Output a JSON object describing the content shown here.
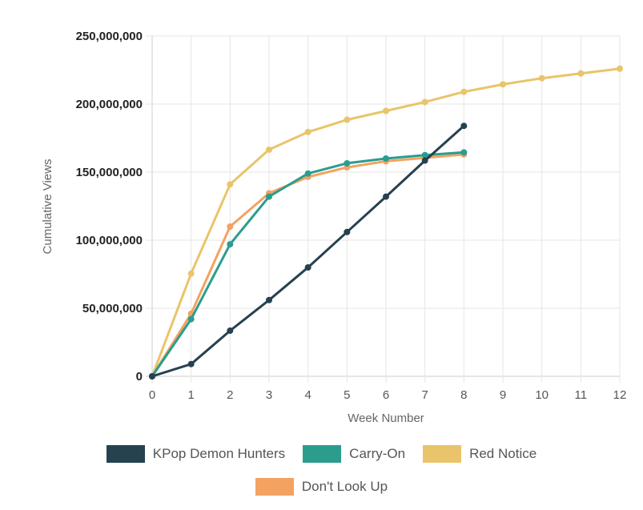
{
  "chart_data": {
    "type": "line",
    "xlabel": "Week Number",
    "ylabel": "Cumulative Views",
    "x_ticks": [
      "0",
      "1",
      "2",
      "3",
      "4",
      "5",
      "6",
      "7",
      "8",
      "9",
      "10",
      "11",
      "12"
    ],
    "y_ticks": [
      "0",
      "50,000,000",
      "100,000,000",
      "150,000,000",
      "200,000,000",
      "250,000,000"
    ],
    "xlim": [
      0,
      12
    ],
    "ylim": [
      0,
      250000000
    ],
    "grid": true,
    "legend_position": "bottom",
    "series": [
      {
        "name": "KPop Demon Hunters",
        "color": "#26414f",
        "x": [
          0,
          1,
          2,
          3,
          4,
          5,
          6,
          7,
          8
        ],
        "values": [
          0,
          9000000,
          33500000,
          56000000,
          80000000,
          106000000,
          132000000,
          158500000,
          184000000
        ]
      },
      {
        "name": "Carry-On",
        "color": "#2a9d8f",
        "x": [
          0,
          1,
          2,
          3,
          4,
          5,
          6,
          7,
          8
        ],
        "values": [
          0,
          42000000,
          97000000,
          132000000,
          149000000,
          156500000,
          160000000,
          162500000,
          164500000
        ]
      },
      {
        "name": "Red Notice",
        "color": "#e9c46a",
        "x": [
          0,
          1,
          2,
          3,
          4,
          5,
          6,
          7,
          8,
          9,
          10,
          11,
          12
        ],
        "values": [
          0,
          75500000,
          141000000,
          166500000,
          179500000,
          188500000,
          195000000,
          201500000,
          209000000,
          214500000,
          219000000,
          222500000,
          226000000
        ]
      },
      {
        "name": "Don't Look Up",
        "color": "#f4a261",
        "x": [
          0,
          1,
          2,
          3,
          4,
          5,
          6,
          7,
          8
        ],
        "values": [
          0,
          46000000,
          110000000,
          134500000,
          146500000,
          153500000,
          158000000,
          160500000,
          163000000
        ]
      }
    ]
  }
}
